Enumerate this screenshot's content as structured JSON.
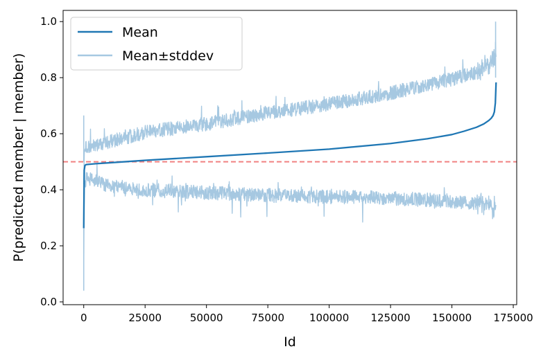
{
  "chart_data": {
    "type": "line",
    "title": "",
    "xlabel": "Id",
    "ylabel": "P(predicted member | member)",
    "xlim": [
      -8400,
      176400
    ],
    "ylim": [
      -0.01,
      1.04
    ],
    "x_ticks": [
      0,
      25000,
      50000,
      75000,
      100000,
      125000,
      150000,
      175000
    ],
    "x_tick_labels": [
      "0",
      "25000",
      "50000",
      "75000",
      "100000",
      "125000",
      "150000",
      "175000"
    ],
    "y_ticks": [
      0.0,
      0.2,
      0.4,
      0.6,
      0.8,
      1.0
    ],
    "y_tick_labels": [
      "0.0",
      "0.2",
      "0.4",
      "0.6",
      "0.8",
      "1.0"
    ],
    "grid": false,
    "legend_position": "top-left",
    "n_points": 168000,
    "series": [
      {
        "name": "Mean",
        "color": "#1f77b4",
        "x": [
          0,
          200,
          500,
          1000,
          5000,
          10000,
          25000,
          50000,
          75000,
          100000,
          125000,
          140000,
          150000,
          155000,
          160000,
          163000,
          165000,
          166000,
          166800,
          167300,
          167700,
          168000
        ],
        "values": [
          0.263,
          0.47,
          0.487,
          0.49,
          0.493,
          0.496,
          0.505,
          0.518,
          0.531,
          0.545,
          0.565,
          0.582,
          0.597,
          0.609,
          0.623,
          0.635,
          0.647,
          0.655,
          0.665,
          0.678,
          0.71,
          0.783
        ]
      },
      {
        "name": "Mean±stddev",
        "color": "#a6c8e1",
        "upper": {
          "x": [
            0,
            200,
            500,
            1000,
            5000,
            10000,
            25000,
            50000,
            75000,
            100000,
            125000,
            150000,
            160000,
            165000,
            168000
          ],
          "values": [
            0.42,
            0.53,
            0.545,
            0.55,
            0.56,
            0.57,
            0.605,
            0.635,
            0.675,
            0.705,
            0.745,
            0.795,
            0.82,
            0.85,
            0.89
          ]
        },
        "lower": {
          "x": [
            0,
            200,
            500,
            1000,
            5000,
            10000,
            25000,
            50000,
            75000,
            100000,
            125000,
            150000,
            160000,
            165000,
            168000
          ],
          "values": [
            0.105,
            0.41,
            0.43,
            0.44,
            0.43,
            0.415,
            0.4,
            0.39,
            0.38,
            0.375,
            0.37,
            0.36,
            0.35,
            0.35,
            0.34
          ]
        }
      }
    ],
    "reference_line": {
      "y": 0.5,
      "color": "#f08080",
      "style": "dashed"
    }
  }
}
